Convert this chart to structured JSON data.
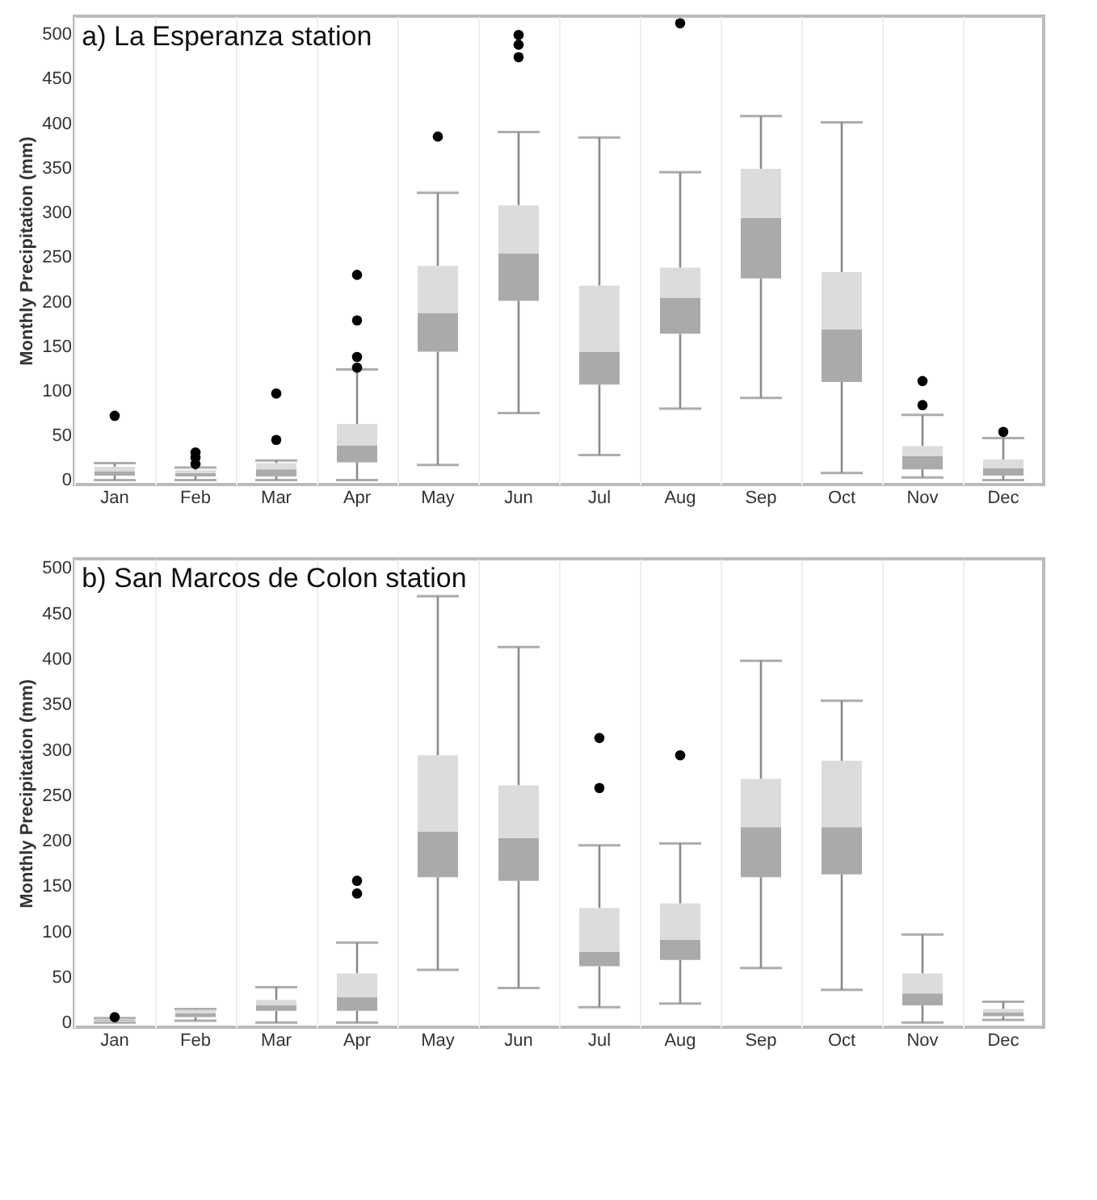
{
  "chart_data": [
    {
      "type": "box",
      "title": "a) La Esperanza station",
      "ylabel": "Monthly Precipitation (mm)",
      "categories": [
        "Jan",
        "Feb",
        "Mar",
        "Apr",
        "May",
        "Jun",
        "Jul",
        "Aug",
        "Sep",
        "Oct",
        "Nov",
        "Dec"
      ],
      "colors": [
        [
          "#aaaaaa",
          "#dcdcdc"
        ],
        [
          "#aaaaaa",
          "#dcdcdc"
        ],
        [
          "#aaaaaa",
          "#dcdcdc"
        ],
        [
          "#aaaaaa",
          "#dcdcdc"
        ],
        [
          "#aaaaaa",
          "#dcdcdc"
        ],
        [
          "#aaaaaa",
          "#dcdcdc"
        ],
        [
          "#aaaaaa",
          "#dcdcdc"
        ],
        [
          "#aaaaaa",
          "#dcdcdc"
        ],
        [
          "#aaaaaa",
          "#dcdcdc"
        ],
        [
          "#aaaaaa",
          "#dcdcdc"
        ],
        [
          "#aaaaaa",
          "#dcdcdc"
        ],
        [
          "#aaaaaa",
          "#dcdcdc"
        ]
      ],
      "grid": "x",
      "ylim": [
        -5,
        520
      ],
      "yticks": [
        0,
        50,
        100,
        150,
        200,
        250,
        300,
        350,
        400,
        450,
        500
      ],
      "boxes": [
        {
          "low": 0,
          "q1": 5,
          "median": 10,
          "q3": 15,
          "high": 19,
          "outliers": [
            72
          ]
        },
        {
          "low": 0,
          "q1": 4,
          "median": 8,
          "q3": 11,
          "high": 14,
          "outliers": [
            31,
            25,
            18
          ]
        },
        {
          "low": 0,
          "q1": 4,
          "median": 12,
          "q3": 19,
          "high": 22,
          "outliers": [
            97,
            45
          ]
        },
        {
          "low": 0,
          "q1": 20,
          "median": 39,
          "q3": 63,
          "high": 124,
          "outliers": [
            230,
            179,
            138,
            126
          ]
        },
        {
          "low": 17,
          "q1": 144,
          "median": 187,
          "q3": 240,
          "high": 322,
          "outliers": [
            385
          ]
        },
        {
          "low": 75,
          "q1": 201,
          "median": 254,
          "q3": 308,
          "high": 390,
          "outliers": [
            499,
            488,
            474
          ]
        },
        {
          "low": 28,
          "q1": 107,
          "median": 144,
          "q3": 218,
          "high": 384
        },
        {
          "low": 80,
          "q1": 164,
          "median": 204,
          "q3": 238,
          "high": 345,
          "outliers": [
            512
          ]
        },
        {
          "low": 92,
          "q1": 226,
          "median": 294,
          "q3": 349,
          "high": 408
        },
        {
          "low": 8,
          "q1": 110,
          "median": 169,
          "q3": 233,
          "high": 401
        },
        {
          "low": 3,
          "q1": 12,
          "median": 27,
          "q3": 38,
          "high": 73,
          "outliers": [
            111,
            84
          ]
        },
        {
          "low": 0,
          "q1": 5,
          "median": 13,
          "q3": 23,
          "high": 47,
          "outliers": [
            54
          ]
        }
      ]
    },
    {
      "type": "box",
      "title": "b) San Marcos de Colon station",
      "ylabel": "Monthly Precipitation (mm)",
      "categories": [
        "Jan",
        "Feb",
        "Mar",
        "Apr",
        "May",
        "Jun",
        "Jul",
        "Aug",
        "Sep",
        "Oct",
        "Nov",
        "Dec"
      ],
      "colors": [
        [
          "#aaaaaa",
          "#dcdcdc"
        ],
        [
          "#aaaaaa",
          "#dcdcdc"
        ],
        [
          "#aaaaaa",
          "#dcdcdc"
        ],
        [
          "#aaaaaa",
          "#dcdcdc"
        ],
        [
          "#aaaaaa",
          "#dcdcdc"
        ],
        [
          "#aaaaaa",
          "#dcdcdc"
        ],
        [
          "#aaaaaa",
          "#dcdcdc"
        ],
        [
          "#aaaaaa",
          "#dcdcdc"
        ],
        [
          "#aaaaaa",
          "#dcdcdc"
        ],
        [
          "#aaaaaa",
          "#dcdcdc"
        ],
        [
          "#aaaaaa",
          "#dcdcdc"
        ],
        [
          "#aaaaaa",
          "#dcdcdc"
        ]
      ],
      "grid": "x",
      "ylim": [
        -5,
        510
      ],
      "yticks": [
        0,
        50,
        100,
        150,
        200,
        250,
        300,
        350,
        400,
        450,
        500
      ],
      "boxes": [
        {
          "low": 0,
          "q1": 2,
          "median": 3,
          "q3": 4,
          "high": 5,
          "outliers": [
            6
          ]
        },
        {
          "low": 2,
          "q1": 6,
          "median": 10,
          "q3": 14,
          "high": 15
        },
        {
          "low": 0,
          "q1": 13,
          "median": 19,
          "q3": 25,
          "high": 39
        },
        {
          "low": 0,
          "q1": 13,
          "median": 28,
          "q3": 54,
          "high": 88,
          "outliers": [
            156,
            142
          ]
        },
        {
          "low": 58,
          "q1": 160,
          "median": 210,
          "q3": 294,
          "high": 469
        },
        {
          "low": 38,
          "q1": 156,
          "median": 203,
          "q3": 261,
          "high": 413
        },
        {
          "low": 17,
          "q1": 62,
          "median": 78,
          "q3": 126,
          "high": 195,
          "outliers": [
            313,
            258
          ]
        },
        {
          "low": 21,
          "q1": 69,
          "median": 91,
          "q3": 131,
          "high": 197,
          "outliers": [
            294
          ]
        },
        {
          "low": 60,
          "q1": 160,
          "median": 215,
          "q3": 268,
          "high": 398
        },
        {
          "low": 36,
          "q1": 163,
          "median": 215,
          "q3": 288,
          "high": 354
        },
        {
          "low": 0,
          "q1": 19,
          "median": 32,
          "q3": 54,
          "high": 97
        },
        {
          "low": 3,
          "q1": 7,
          "median": 11,
          "q3": 15,
          "high": 23
        }
      ]
    }
  ]
}
